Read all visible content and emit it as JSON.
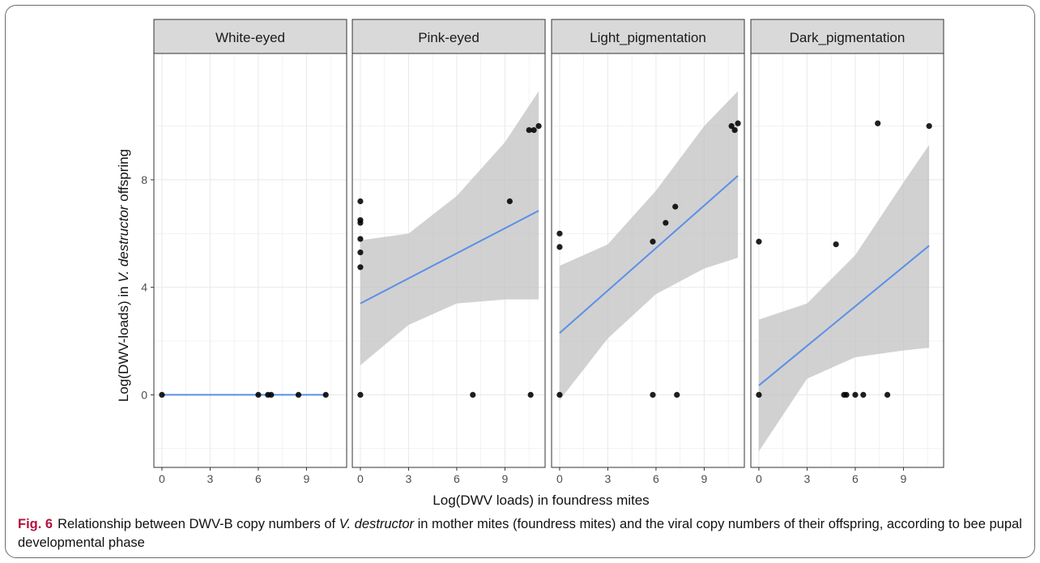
{
  "figure": {
    "label": "Fig. 6",
    "caption_part1": "Relationship between DWV-B copy numbers of ",
    "caption_italic1": "V. destructor",
    "caption_part2": " in mother mites (foundress mites) and the viral copy numbers of their offspring, according to bee pupal developmental phase"
  },
  "chart_data": {
    "type": "scatter",
    "subtype": "faceted scatter with linear fit and 95% confidence band",
    "xlabel": "Log(DWV loads) in foundress mites",
    "ylabel_part1": "Log(DWV-loads) in ",
    "ylabel_italic": "V. destructor",
    "ylabel_part2": " offspring",
    "xlim": [
      -0.5,
      11.5
    ],
    "ylim": [
      -2.7,
      12.7
    ],
    "x_ticks": [
      0,
      3,
      6,
      9
    ],
    "y_ticks": [
      0,
      4,
      8
    ],
    "grid": true,
    "colors": {
      "points": "#000000",
      "fit_line": "#5b8fe8",
      "ci_band": "#bfbfbf",
      "strip_background": "#d9d9d9",
      "grid": "#ebebeb"
    },
    "panels": [
      {
        "name": "White-eyed",
        "points": [
          [
            0,
            0
          ],
          [
            6.0,
            0
          ],
          [
            6.6,
            0
          ],
          [
            6.8,
            0
          ],
          [
            8.5,
            0
          ],
          [
            10.2,
            0
          ]
        ],
        "fit": {
          "x0": 0,
          "y0": 0,
          "x1": 10.2,
          "y1": 0
        },
        "ci": []
      },
      {
        "name": "Pink-eyed",
        "points": [
          [
            0,
            7.2
          ],
          [
            0,
            6.5
          ],
          [
            0,
            6.4
          ],
          [
            0,
            5.8
          ],
          [
            0,
            5.3
          ],
          [
            0,
            4.75
          ],
          [
            0,
            0
          ],
          [
            7.0,
            0
          ],
          [
            9.3,
            7.2
          ],
          [
            10.5,
            9.85
          ],
          [
            10.8,
            9.85
          ],
          [
            11.1,
            10.0
          ],
          [
            10.6,
            0
          ]
        ],
        "fit": {
          "x0": 0,
          "y0": 3.4,
          "x1": 11.1,
          "y1": 6.85
        },
        "ci": [
          [
            0,
            5.75,
            1.1
          ],
          [
            3,
            6.0,
            2.6
          ],
          [
            6,
            7.4,
            3.4
          ],
          [
            9,
            9.4,
            3.55
          ],
          [
            11.1,
            11.3,
            3.55
          ]
        ]
      },
      {
        "name": "Light_pigmentation",
        "points": [
          [
            0,
            6.0
          ],
          [
            0,
            5.5
          ],
          [
            0,
            0
          ],
          [
            5.8,
            5.7
          ],
          [
            6.6,
            6.4
          ],
          [
            7.2,
            7.0
          ],
          [
            5.8,
            0
          ],
          [
            7.3,
            0
          ],
          [
            10.7,
            10.0
          ],
          [
            10.9,
            9.85
          ],
          [
            11.1,
            10.1
          ]
        ],
        "fit": {
          "x0": 0,
          "y0": 2.3,
          "x1": 11.1,
          "y1": 8.15
        },
        "ci": [
          [
            0,
            4.8,
            -0.2
          ],
          [
            3,
            5.6,
            2.1
          ],
          [
            6,
            7.6,
            3.75
          ],
          [
            9,
            10.0,
            4.7
          ],
          [
            11.1,
            11.3,
            5.1
          ]
        ]
      },
      {
        "name": "Dark_pigmentation",
        "points": [
          [
            0,
            5.7
          ],
          [
            0,
            0
          ],
          [
            4.8,
            5.6
          ],
          [
            7.4,
            10.1
          ],
          [
            10.6,
            10.0
          ],
          [
            5.3,
            0
          ],
          [
            5.45,
            0
          ],
          [
            6.0,
            0
          ],
          [
            6.5,
            0
          ],
          [
            8.0,
            0
          ]
        ],
        "fit": {
          "x0": 0,
          "y0": 0.35,
          "x1": 10.6,
          "y1": 5.55
        },
        "ci": [
          [
            0,
            2.8,
            -2.1
          ],
          [
            3,
            3.4,
            0.6
          ],
          [
            6,
            5.2,
            1.4
          ],
          [
            9,
            7.9,
            1.65
          ],
          [
            10.6,
            9.3,
            1.75
          ]
        ]
      }
    ]
  }
}
